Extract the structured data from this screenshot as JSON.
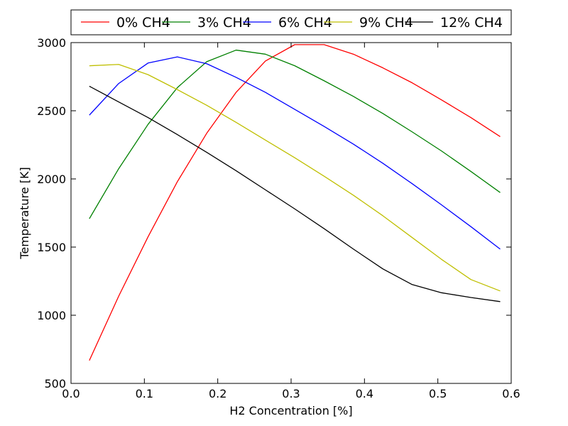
{
  "chart_data": {
    "type": "line",
    "title": "",
    "xlabel": "H2 Concentration [%]",
    "ylabel": "Temperature [K]",
    "xlim": [
      0.0,
      0.6
    ],
    "ylim": [
      500,
      3000
    ],
    "xticks": [
      "0.0",
      "0.1",
      "0.2",
      "0.3",
      "0.4",
      "0.5",
      "0.6"
    ],
    "yticks": [
      "500",
      "1000",
      "1500",
      "2000",
      "2500",
      "3000"
    ],
    "grid": false,
    "legend_placement": "top, above plot, single row",
    "x": [
      0.025,
      0.065,
      0.105,
      0.145,
      0.185,
      0.225,
      0.265,
      0.305,
      0.345,
      0.385,
      0.425,
      0.465,
      0.505,
      0.545,
      0.585
    ],
    "series": [
      {
        "name": "0% CH4",
        "color": "#ff0000",
        "values": [
          668,
          1140,
          1575,
          1980,
          2335,
          2635,
          2865,
          2985,
          2985,
          2915,
          2815,
          2705,
          2580,
          2450,
          2310
        ]
      },
      {
        "name": "3% CH4",
        "color": "#008000",
        "values": [
          1708,
          2075,
          2400,
          2670,
          2860,
          2945,
          2915,
          2830,
          2720,
          2605,
          2480,
          2345,
          2205,
          2055,
          1900
        ]
      },
      {
        "name": "6% CH4",
        "color": "#0000ff",
        "values": [
          2468,
          2700,
          2850,
          2895,
          2845,
          2745,
          2635,
          2510,
          2385,
          2255,
          2115,
          1965,
          1810,
          1650,
          1485
        ]
      },
      {
        "name": "9% CH4",
        "color": "#bfbf00",
        "values": [
          2830,
          2840,
          2765,
          2655,
          2540,
          2415,
          2285,
          2155,
          2020,
          1880,
          1730,
          1570,
          1410,
          1262,
          1178
        ]
      },
      {
        "name": "12% CH4",
        "color": "#000000",
        "values": [
          2680,
          2565,
          2450,
          2325,
          2195,
          2060,
          1920,
          1780,
          1635,
          1485,
          1340,
          1225,
          1165,
          1130,
          1100
        ]
      }
    ]
  }
}
